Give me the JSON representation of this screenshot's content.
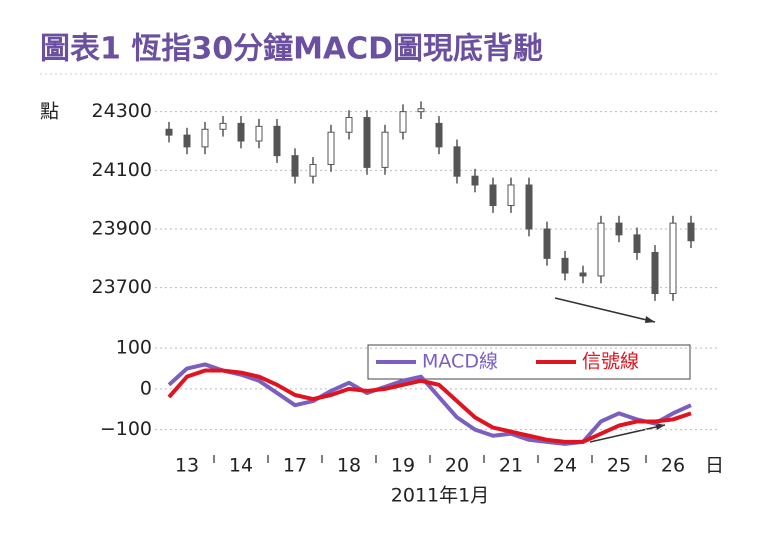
{
  "chart_data": [
    {
      "type": "candlestick",
      "title": "圖表1 恆指30分鐘MACD圖現底背馳",
      "y_label": "點",
      "color": "#555555",
      "x": [
        0.5,
        1.5,
        2.5,
        3.5,
        4.5,
        5.5,
        6.5,
        7.5,
        8.5,
        9.5,
        10.5,
        11.5,
        12.5,
        13.5,
        14.5,
        15.5,
        16.5,
        17.5,
        18.5,
        19.5,
        20.5,
        21.5,
        22.5,
        23.5,
        24.5,
        25.5,
        26.5,
        27.5,
        28.5,
        29.5
      ],
      "open": [
        24240,
        24220,
        24180,
        24240,
        24260,
        24200,
        24250,
        24150,
        24080,
        24120,
        24230,
        24280,
        24110,
        24230,
        24300,
        24260,
        24180,
        24080,
        24050,
        23980,
        24050,
        23900,
        23800,
        23750,
        23740,
        23920,
        23880,
        23820,
        23680,
        23920
      ],
      "high": [
        24265,
        24245,
        24265,
        24285,
        24285,
        24275,
        24275,
        24175,
        24145,
        24255,
        24305,
        24305,
        24255,
        24325,
        24335,
        24285,
        24205,
        24105,
        24075,
        24075,
        24075,
        23925,
        23825,
        23775,
        23945,
        23945,
        23905,
        23845,
        23945,
        23945
      ],
      "low": [
        24195,
        24155,
        24155,
        24215,
        24175,
        24175,
        24125,
        24055,
        24055,
        24095,
        24205,
        24085,
        24085,
        24205,
        24275,
        24155,
        24055,
        24025,
        23955,
        23955,
        23875,
        23775,
        23725,
        23715,
        23715,
        23855,
        23795,
        23655,
        23655,
        23835
      ],
      "close": [
        24220,
        24180,
        24240,
        24260,
        24200,
        24250,
        24150,
        24080,
        24120,
        24230,
        24280,
        24110,
        24230,
        24300,
        24310,
        24180,
        24080,
        24050,
        23980,
        24050,
        23900,
        23800,
        23750,
        23740,
        23920,
        23880,
        23820,
        23680,
        23920,
        23860
      ],
      "xlim": [
        0,
        30
      ],
      "ylim": [
        23600,
        24350
      ],
      "yticks": [
        23700,
        23900,
        24100,
        24300
      ],
      "grid": true
    },
    {
      "type": "line",
      "xlim": [
        0,
        30
      ],
      "ylim": [
        -150,
        120
      ],
      "yticks": [
        {
          "value": -100,
          "label": "−100"
        },
        0,
        100
      ],
      "grid": true,
      "legend": "top-right",
      "x": [
        0.5,
        1.5,
        2.5,
        3.5,
        4.5,
        5.5,
        6.5,
        7.5,
        8.5,
        9.5,
        10.5,
        11.5,
        12.5,
        13.5,
        14.5,
        15.5,
        16.5,
        17.5,
        18.5,
        19.5,
        20.5,
        21.5,
        22.5,
        23.5,
        24.5,
        25.5,
        26.5,
        27.5,
        28.5,
        29.5
      ],
      "series": [
        {
          "name": "MACD線",
          "color": "#7b5fc0",
          "values": [
            10,
            50,
            60,
            45,
            35,
            20,
            -10,
            -40,
            -30,
            -5,
            15,
            -10,
            5,
            20,
            30,
            -20,
            -70,
            -100,
            -115,
            -110,
            -125,
            -130,
            -135,
            -130,
            -80,
            -60,
            -75,
            -85,
            -60,
            -40
          ]
        },
        {
          "name": "信號線",
          "color": "#e0141e",
          "values": [
            -20,
            30,
            45,
            45,
            40,
            30,
            10,
            -15,
            -25,
            -15,
            0,
            -5,
            0,
            10,
            20,
            10,
            -30,
            -70,
            -95,
            -105,
            -115,
            -125,
            -130,
            -130,
            -110,
            -90,
            -80,
            -80,
            -75,
            -60
          ]
        }
      ],
      "xticks": [
        {
          "value": 1.5,
          "label": "13"
        },
        {
          "value": 4.5,
          "label": "14"
        },
        {
          "value": 7.5,
          "label": "17"
        },
        {
          "value": 10.5,
          "label": "18"
        },
        {
          "value": 13.5,
          "label": "19"
        },
        {
          "value": 16.5,
          "label": "20"
        },
        {
          "value": 19.5,
          "label": "21"
        },
        {
          "value": 22.5,
          "label": "24"
        },
        {
          "value": 25.5,
          "label": "25"
        },
        {
          "value": 28.5,
          "label": "26"
        }
      ],
      "x_unit": "日",
      "x_label": "2011年1月"
    }
  ]
}
